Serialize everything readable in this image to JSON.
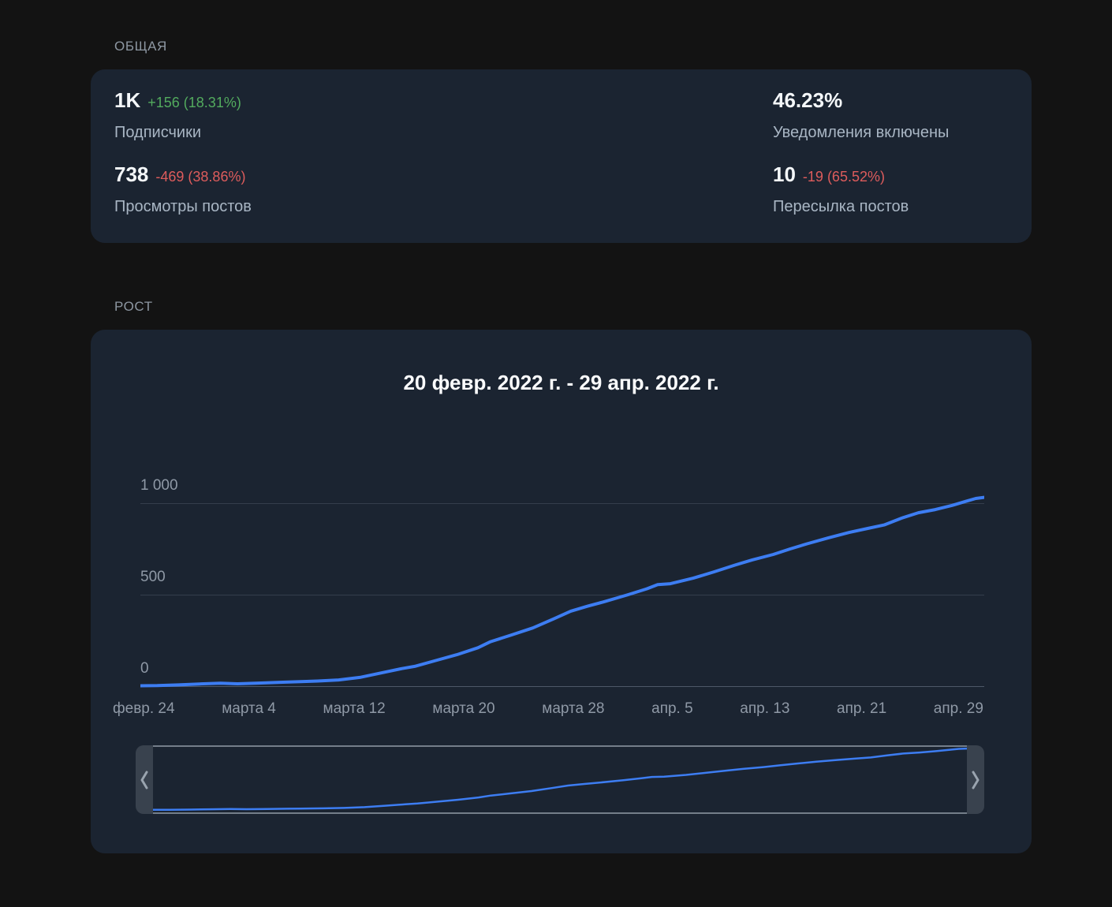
{
  "overview": {
    "section_label": "ОБЩАЯ",
    "stats": [
      {
        "value": "1K",
        "delta": "+156 (18.31%)",
        "trend": "up",
        "label": "Подписчики"
      },
      {
        "value": "46.23%",
        "delta": "",
        "trend": "none",
        "label": "Уведомления включены"
      },
      {
        "value": "738",
        "delta": "-469 (38.86%)",
        "trend": "down",
        "label": "Просмотры постов"
      },
      {
        "value": "10",
        "delta": "-19 (65.52%)",
        "trend": "down",
        "label": "Пересылка постов"
      }
    ]
  },
  "growth": {
    "section_label": "РОСТ"
  },
  "colors": {
    "page_bg": "#131313",
    "card_bg": "#1b2431",
    "line_blue": "#3d7df2",
    "positive_green": "#53ab5e",
    "negative_red": "#dd5c5c",
    "value_text": "#f4f7f9",
    "label_text": "#a9b6c4",
    "axis_text": "#8f99a6"
  },
  "chart_data": {
    "type": "line",
    "title": "20 февр. 2022 г. - 29 апр. 2022 г.",
    "xlabel": "",
    "ylabel": "",
    "x_tick_labels": [
      "февр. 24",
      "марта 4",
      "марта 12",
      "марта 20",
      "марта 28",
      "апр. 5",
      "апр. 13",
      "апр. 21",
      "апр. 29"
    ],
    "y_ticks": [
      0,
      500,
      1000
    ],
    "y_tick_labels": [
      "0",
      "500",
      "1 000"
    ],
    "ylim": [
      0,
      1100
    ],
    "x_range": [
      "2022-02-20",
      "2022-04-29"
    ],
    "grid": "horizontal",
    "legend": "none",
    "line_color": "#3d7df2",
    "series": [
      {
        "name": "Подписчики",
        "points": [
          [
            0.0,
            2
          ],
          [
            0.02,
            3
          ],
          [
            0.045,
            7
          ],
          [
            0.07,
            12
          ],
          [
            0.095,
            16
          ],
          [
            0.115,
            13
          ],
          [
            0.14,
            17
          ],
          [
            0.165,
            21
          ],
          [
            0.19,
            25
          ],
          [
            0.21,
            28
          ],
          [
            0.235,
            34
          ],
          [
            0.26,
            48
          ],
          [
            0.285,
            72
          ],
          [
            0.31,
            96
          ],
          [
            0.325,
            108
          ],
          [
            0.35,
            140
          ],
          [
            0.375,
            172
          ],
          [
            0.4,
            210
          ],
          [
            0.415,
            243
          ],
          [
            0.44,
            280
          ],
          [
            0.465,
            318
          ],
          [
            0.49,
            368
          ],
          [
            0.51,
            410
          ],
          [
            0.53,
            437
          ],
          [
            0.55,
            462
          ],
          [
            0.578,
            500
          ],
          [
            0.6,
            532
          ],
          [
            0.613,
            555
          ],
          [
            0.628,
            560
          ],
          [
            0.655,
            590
          ],
          [
            0.68,
            625
          ],
          [
            0.705,
            662
          ],
          [
            0.725,
            690
          ],
          [
            0.75,
            720
          ],
          [
            0.77,
            750
          ],
          [
            0.79,
            778
          ],
          [
            0.815,
            810
          ],
          [
            0.84,
            840
          ],
          [
            0.862,
            862
          ],
          [
            0.882,
            882
          ],
          [
            0.902,
            918
          ],
          [
            0.922,
            948
          ],
          [
            0.942,
            965
          ],
          [
            0.962,
            988
          ],
          [
            0.978,
            1010
          ],
          [
            0.99,
            1026
          ],
          [
            1.0,
            1032
          ]
        ]
      }
    ]
  }
}
